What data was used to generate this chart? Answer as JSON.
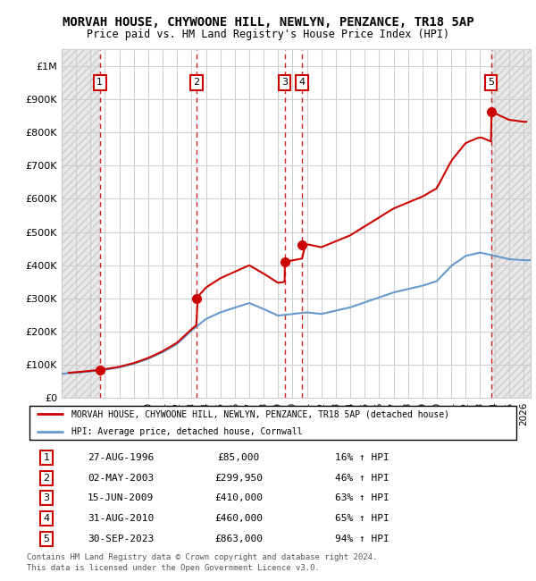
{
  "title": "MORVAH HOUSE, CHYWOONE HILL, NEWLYN, PENZANCE, TR18 5AP",
  "subtitle": "Price paid vs. HM Land Registry's House Price Index (HPI)",
  "ylabel_ticks": [
    "£0",
    "£100K",
    "£200K",
    "£300K",
    "£400K",
    "£500K",
    "£600K",
    "£700K",
    "£800K",
    "£900K",
    "£1M"
  ],
  "ytick_values": [
    0,
    100000,
    200000,
    300000,
    400000,
    500000,
    600000,
    700000,
    800000,
    900000,
    1000000
  ],
  "ylim": [
    0,
    1050000
  ],
  "xlim_start": 1994.0,
  "xlim_end": 2026.5,
  "hpi_anchor_years": [
    1994,
    1995,
    1996,
    1997,
    1998,
    1999,
    2000,
    2001,
    2002,
    2003,
    2004,
    2005,
    2006,
    2007,
    2008,
    2009,
    2010,
    2011,
    2012,
    2013,
    2014,
    2015,
    2016,
    2017,
    2018,
    2019,
    2020,
    2021,
    2022,
    2023,
    2024,
    2025,
    2026,
    2027
  ],
  "hpi_anchor_prices": [
    73000,
    76000,
    80000,
    85000,
    92000,
    103000,
    118000,
    138000,
    163000,
    203000,
    238000,
    258000,
    272000,
    286000,
    268000,
    248000,
    253000,
    258000,
    253000,
    263000,
    273000,
    288000,
    303000,
    318000,
    328000,
    338000,
    352000,
    398000,
    428000,
    438000,
    428000,
    418000,
    415000,
    415000
  ],
  "sales": [
    {
      "num": 1,
      "year": 1996.65,
      "price": 85000,
      "date": "27-AUG-1996",
      "pct": "16%"
    },
    {
      "num": 2,
      "year": 2003.33,
      "price": 299950,
      "date": "02-MAY-2003",
      "pct": "46%"
    },
    {
      "num": 3,
      "year": 2009.45,
      "price": 410000,
      "date": "15-JUN-2009",
      "pct": "63%"
    },
    {
      "num": 4,
      "year": 2010.66,
      "price": 460000,
      "date": "31-AUG-2010",
      "pct": "65%"
    },
    {
      "num": 5,
      "year": 2023.75,
      "price": 863000,
      "date": "30-SEP-2023",
      "pct": "94%"
    }
  ],
  "hpi_color": "#6699cc",
  "sale_color": "#cc0000",
  "legend_label_sale": "MORVAH HOUSE, CHYWOONE HILL, NEWLYN, PENZANCE, TR18 5AP (detached house)",
  "legend_label_hpi": "HPI: Average price, detached house, Cornwall",
  "footer1": "Contains HM Land Registry data © Crown copyright and database right 2024.",
  "footer2": "This data is licensed under the Open Government Licence v3.0.",
  "table_rows": [
    [
      "1",
      "27-AUG-1996",
      "£85,000",
      "16% ↑ HPI"
    ],
    [
      "2",
      "02-MAY-2003",
      "£299,950",
      "46% ↑ HPI"
    ],
    [
      "3",
      "15-JUN-2009",
      "£410,000",
      "63% ↑ HPI"
    ],
    [
      "4",
      "31-AUG-2010",
      "£460,000",
      "65% ↑ HPI"
    ],
    [
      "5",
      "30-SEP-2023",
      "£863,000",
      "94% ↑ HPI"
    ]
  ]
}
